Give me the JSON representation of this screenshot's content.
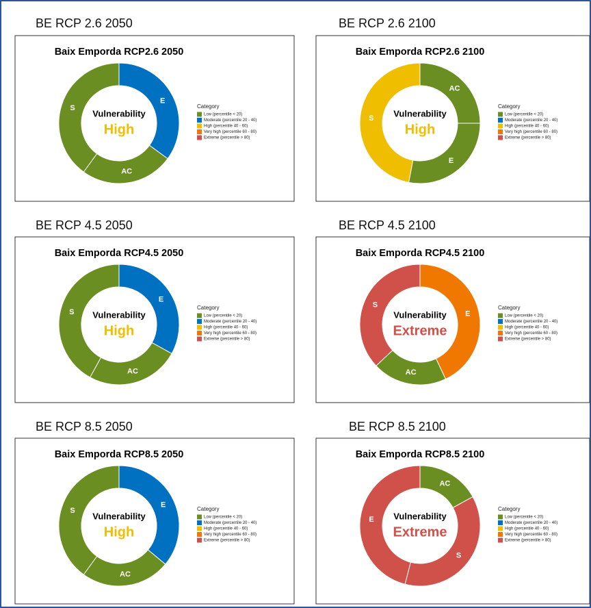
{
  "chart_data": [
    {
      "type": "donut",
      "heading": "BE RCP 2.6 2050",
      "title": "Baix Emporda RCP2.6 2050",
      "center_label": "Vulnerability",
      "center_value": "High",
      "center_color": "#efbe00",
      "categories": [
        "E",
        "AC",
        "S"
      ],
      "values": [
        35,
        25,
        40
      ],
      "colors": [
        "#0070c0",
        "#6b8e23",
        "#6b8e23"
      ],
      "legend_title": "Category",
      "legend": [
        {
          "label": "Low (percentile < 20)",
          "color": "#6b8e23"
        },
        {
          "label": "Moderate (percentile 20 - 40)",
          "color": "#0070c0"
        },
        {
          "label": "High (percentile 40 - 60)",
          "color": "#efbe00"
        },
        {
          "label": "Very high (percentile 60 - 80)",
          "color": "#f07800"
        },
        {
          "label": "Extreme (percentile > 80)",
          "color": "#d0504a"
        }
      ]
    },
    {
      "type": "donut",
      "heading": "BE RCP 2.6 2100",
      "title": "Baix Emporda RCP2.6 2100",
      "center_label": "Vulnerability",
      "center_value": "High",
      "center_color": "#efbe00",
      "categories": [
        "AC",
        "E",
        "S"
      ],
      "values": [
        25,
        28,
        47
      ],
      "colors": [
        "#6b8e23",
        "#6b8e23",
        "#efbe00"
      ],
      "legend_title": "Category",
      "legend": [
        {
          "label": "Low (percentile < 20)",
          "color": "#6b8e23"
        },
        {
          "label": "Moderate (percentile 20 - 40)",
          "color": "#0070c0"
        },
        {
          "label": "High (percentile 40 - 60)",
          "color": "#efbe00"
        },
        {
          "label": "Very high (percentile 60 - 80)",
          "color": "#f07800"
        },
        {
          "label": "Extreme (percentile > 80)",
          "color": "#d0504a"
        }
      ]
    },
    {
      "type": "donut",
      "heading": "BE RCP 4.5 2050",
      "title": "Baix Emporda RCP4.5 2050",
      "center_label": "Vulnerability",
      "center_value": "High",
      "center_color": "#efbe00",
      "categories": [
        "E",
        "AC",
        "S"
      ],
      "values": [
        33,
        25,
        42
      ],
      "colors": [
        "#0070c0",
        "#6b8e23",
        "#6b8e23"
      ],
      "legend_title": "Category",
      "legend": [
        {
          "label": "Low (percentile < 20)",
          "color": "#6b8e23"
        },
        {
          "label": "Moderate (percentile 20 - 40)",
          "color": "#0070c0"
        },
        {
          "label": "High (percentile 40 - 60)",
          "color": "#efbe00"
        },
        {
          "label": "Very high (percentile 60 - 80)",
          "color": "#f07800"
        },
        {
          "label": "Extreme (percentile > 80)",
          "color": "#d0504a"
        }
      ]
    },
    {
      "type": "donut",
      "heading": "BE RCP 4.5 2100",
      "title": "Baix Emporda RCP4.5 2100",
      "center_label": "Vulnerability",
      "center_value": "Extreme",
      "center_color": "#d0504a",
      "categories": [
        "E",
        "AC",
        "S"
      ],
      "values": [
        43,
        20,
        37
      ],
      "colors": [
        "#f07800",
        "#6b8e23",
        "#d0504a"
      ],
      "legend_title": "Category",
      "legend": [
        {
          "label": "Low (percentile < 20)",
          "color": "#6b8e23"
        },
        {
          "label": "Moderate (percentile 20 - 40)",
          "color": "#0070c0"
        },
        {
          "label": "High (percentile 40 - 60)",
          "color": "#efbe00"
        },
        {
          "label": "Very high (percentile 60 - 80)",
          "color": "#f07800"
        },
        {
          "label": "Extreme (percentile > 80)",
          "color": "#d0504a"
        }
      ]
    },
    {
      "type": "donut",
      "heading": "BE RCP 8.5 2050",
      "title": "Baix Emporda RCP8.5 2050",
      "center_label": "Vulnerability",
      "center_value": "High",
      "center_color": "#efbe00",
      "categories": [
        "E",
        "AC",
        "S"
      ],
      "values": [
        36,
        24,
        40
      ],
      "colors": [
        "#0070c0",
        "#6b8e23",
        "#6b8e23"
      ],
      "legend_title": "Category",
      "legend": [
        {
          "label": "Low (percentile < 20)",
          "color": "#6b8e23"
        },
        {
          "label": "Moderate (percentile 20 - 40)",
          "color": "#0070c0"
        },
        {
          "label": "High (percentile 40 - 60)",
          "color": "#efbe00"
        },
        {
          "label": "Very high (percentile 60 - 80)",
          "color": "#f07800"
        },
        {
          "label": "Extreme (percentile > 80)",
          "color": "#d0504a"
        }
      ]
    },
    {
      "type": "donut",
      "heading": "BE RCP 8.5 2100",
      "title": "Baix Emporda RCP8.5 2100",
      "center_label": "Vulnerability",
      "center_value": "Extreme",
      "center_color": "#d0504a",
      "categories": [
        "AC",
        "S",
        "E"
      ],
      "values": [
        17,
        37,
        46
      ],
      "colors": [
        "#6b8e23",
        "#d0504a",
        "#d0504a"
      ],
      "legend_title": "Category",
      "legend": [
        {
          "label": "Low (percentile < 20)",
          "color": "#6b8e23"
        },
        {
          "label": "Moderate (percentile 20 - 40)",
          "color": "#0070c0"
        },
        {
          "label": "High (percentile 40 - 60)",
          "color": "#efbe00"
        },
        {
          "label": "Very high (percentile 60 - 80)",
          "color": "#f07800"
        },
        {
          "label": "Extreme (percentile > 80)",
          "color": "#d0504a"
        }
      ]
    }
  ]
}
